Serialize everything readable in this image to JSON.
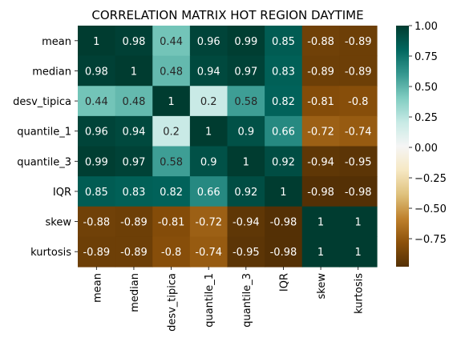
{
  "chart_data": {
    "type": "heatmap",
    "title": "CORRELATION MATRIX HOT REGION DAYTIME",
    "row_labels": [
      "mean",
      "median",
      "desv_tipica",
      "quantile_1",
      "quantile_3",
      "IQR",
      "skew",
      "kurtosis"
    ],
    "col_labels": [
      "mean",
      "median",
      "desv_tipica",
      "quantile_1",
      "quantile_3",
      "IQR",
      "skew",
      "kurtosis"
    ],
    "values": [
      [
        1,
        0.98,
        0.44,
        0.96,
        0.99,
        0.85,
        -0.88,
        -0.89
      ],
      [
        0.98,
        1,
        0.48,
        0.94,
        0.97,
        0.83,
        -0.89,
        -0.89
      ],
      [
        0.44,
        0.48,
        1,
        0.2,
        0.58,
        0.82,
        -0.81,
        -0.8
      ],
      [
        0.96,
        0.94,
        0.2,
        1,
        0.9,
        0.66,
        -0.72,
        -0.74
      ],
      [
        0.99,
        0.97,
        0.58,
        0.9,
        1,
        0.92,
        -0.94,
        -0.95
      ],
      [
        0.85,
        0.83,
        0.82,
        0.66,
        0.92,
        1,
        -0.98,
        -0.98
      ],
      [
        -0.88,
        -0.89,
        -0.81,
        -0.72,
        -0.94,
        -0.98,
        1,
        1
      ],
      [
        -0.89,
        -0.89,
        -0.8,
        -0.74,
        -0.95,
        -0.98,
        1,
        1
      ]
    ],
    "colormap": "BrBG",
    "colorbar": {
      "min": -0.98,
      "max": 1.0,
      "ticks": [
        1.0,
        0.75,
        0.5,
        0.25,
        0.0,
        -0.25,
        -0.5,
        -0.75
      ],
      "tick_labels": [
        "1.00",
        "0.75",
        "0.50",
        "0.25",
        "0.00",
        "−0.25",
        "−0.50",
        "−0.75"
      ]
    },
    "annotated": true,
    "grid": false
  }
}
